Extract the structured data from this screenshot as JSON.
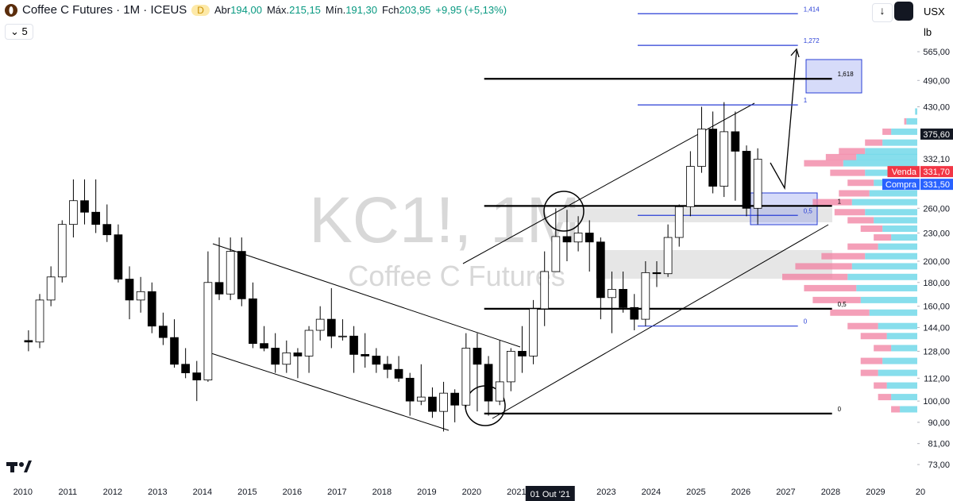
{
  "header": {
    "symbol": "Coffee C Futures · 1M · ICEUS",
    "badge": "D",
    "ohlc": [
      {
        "name": "Abr",
        "value": "194,00"
      },
      {
        "name": "Máx.",
        "value": "215,15"
      },
      {
        "name": "Mín.",
        "value": "191,30"
      },
      {
        "name": "Fch",
        "value": "203,95"
      }
    ],
    "change": "+9,95 (+5,13%)",
    "indicator_count": "5",
    "currency": "USX",
    "unit": "lb"
  },
  "chart_data": {
    "type": "candlestick",
    "watermark": "KC1!, 1M",
    "watermark_subtitle": "Coffee C Futures",
    "log_scale": true,
    "grid": false,
    "up_color": "#ffffff",
    "down_color": "#000000",
    "x": [
      2010.125,
      2010.375,
      2010.625,
      2010.875,
      2011.125,
      2011.375,
      2011.625,
      2011.875,
      2012.125,
      2012.375,
      2012.625,
      2012.875,
      2013.125,
      2013.375,
      2013.625,
      2013.875,
      2014.125,
      2014.375,
      2014.625,
      2014.875,
      2015.125,
      2015.375,
      2015.625,
      2015.875,
      2016.125,
      2016.375,
      2016.625,
      2016.875,
      2017.125,
      2017.375,
      2017.625,
      2017.875,
      2018.125,
      2018.375,
      2018.625,
      2018.875,
      2019.125,
      2019.375,
      2019.625,
      2019.875,
      2020.125,
      2020.375,
      2020.625,
      2020.875,
      2021.125,
      2021.375,
      2021.625,
      2021.875,
      2022.125,
      2022.375,
      2022.625,
      2022.875,
      2023.125,
      2023.375,
      2023.625,
      2023.875,
      2024.125,
      2024.375,
      2024.625,
      2024.875,
      2025.125,
      2025.375,
      2025.625,
      2025.875,
      2026.125,
      2026.375
    ],
    "open": [
      135,
      134,
      165,
      185,
      240,
      270,
      255,
      240,
      228,
      183,
      165,
      172,
      145,
      137,
      120,
      115,
      111,
      180,
      170,
      210,
      166,
      133,
      130,
      120,
      127,
      125,
      142,
      150,
      138,
      138,
      126,
      125,
      120,
      117,
      112,
      100,
      102,
      95,
      104,
      98,
      130,
      120,
      100,
      110,
      128,
      125,
      158,
      190,
      226,
      220,
      230,
      220,
      167,
      174,
      159,
      150,
      189,
      188,
      225,
      262,
      320,
      385,
      290,
      380,
      345,
      260
    ],
    "high": [
      142,
      170,
      195,
      245,
      300,
      300,
      300,
      265,
      240,
      195,
      185,
      180,
      155,
      150,
      130,
      122,
      210,
      225,
      225,
      225,
      180,
      145,
      140,
      135,
      130,
      145,
      160,
      175,
      150,
      145,
      140,
      130,
      125,
      125,
      115,
      120,
      107,
      110,
      106,
      140,
      140,
      125,
      135,
      130,
      145,
      165,
      210,
      260,
      258,
      250,
      245,
      225,
      190,
      190,
      170,
      200,
      200,
      240,
      265,
      345,
      430,
      420,
      440,
      420,
      355,
      350
    ],
    "low": [
      128,
      130,
      160,
      180,
      225,
      240,
      230,
      220,
      180,
      150,
      155,
      140,
      132,
      118,
      112,
      100,
      110,
      165,
      165,
      160,
      130,
      128,
      115,
      115,
      112,
      115,
      135,
      130,
      135,
      115,
      118,
      115,
      112,
      110,
      93,
      98,
      92,
      86,
      90,
      97,
      95,
      93,
      98,
      105,
      115,
      120,
      145,
      190,
      200,
      210,
      190,
      150,
      140,
      155,
      142,
      145,
      176,
      185,
      215,
      250,
      310,
      280,
      275,
      270,
      250,
      240
    ],
    "close": [
      134,
      165,
      185,
      240,
      270,
      255,
      240,
      228,
      183,
      165,
      172,
      145,
      137,
      120,
      115,
      111,
      180,
      170,
      210,
      166,
      133,
      130,
      120,
      127,
      125,
      142,
      150,
      138,
      138,
      126,
      125,
      120,
      117,
      112,
      100,
      102,
      95,
      104,
      98,
      130,
      120,
      100,
      110,
      128,
      125,
      158,
      190,
      226,
      220,
      230,
      220,
      167,
      174,
      159,
      150,
      189,
      188,
      225,
      262,
      320,
      385,
      290,
      380,
      345,
      260,
      331.7
    ],
    "xlim": [
      2009.49,
      2029.93
    ],
    "xticks": [
      2010,
      2011,
      2012,
      2013,
      2014,
      2015,
      2016,
      2017,
      2018,
      2019,
      2020,
      2021,
      2023,
      2024,
      2025,
      2026,
      2027,
      2028,
      2029,
      {
        "value": 2030,
        "label": "20"
      }
    ],
    "crosshair_label": "01 Out '21",
    "crosshair_x": 2021.75,
    "ylim": [
      67.5,
      730
    ],
    "yticks": [
      {
        "value": 565,
        "label": "565,00"
      },
      {
        "value": 490,
        "label": "490,00"
      },
      {
        "value": 430,
        "label": "430,00"
      },
      {
        "value": 260,
        "label": "260,00"
      },
      {
        "value": 230,
        "label": "230,00"
      },
      {
        "value": 200,
        "label": "200,00"
      },
      {
        "value": 180,
        "label": "180,00"
      },
      {
        "value": 160,
        "label": "160,00"
      },
      {
        "value": 144,
        "label": "144,00"
      },
      {
        "value": 128,
        "label": "128,00"
      },
      {
        "value": 112,
        "label": "112,00"
      },
      {
        "value": 100,
        "label": "100,00"
      },
      {
        "value": 90,
        "label": "90,00"
      },
      {
        "value": 81,
        "label": "81,00"
      },
      {
        "value": 73,
        "label": "73,00"
      }
    ],
    "price_labels": [
      {
        "value": 375.6,
        "label": "375,60",
        "color": "#131722"
      },
      {
        "value": 332.1,
        "label": "332,10",
        "color": "#ffffff"
      },
      {
        "name": "Venda",
        "value": 331.7,
        "label": "331,70",
        "color": "#f23645"
      },
      {
        "name": "Compra",
        "value": 331.5,
        "label": "331,50",
        "color": "#2962ff"
      }
    ],
    "fib_levels": [
      {
        "label": "1,414",
        "value": 682,
        "x_start": 2023.7,
        "x_end": 2027.27,
        "color": "#2a3fd6"
      },
      {
        "label": "1,272",
        "value": 583,
        "x_start": 2023.7,
        "x_end": 2027.27,
        "color": "#2a3fd6"
      },
      {
        "label": "1",
        "value": 434,
        "x_start": 2023.7,
        "x_end": 2027.27,
        "color": "#2a3fd6"
      },
      {
        "label": "0,5",
        "value": 251,
        "x_start": 2023.7,
        "x_end": 2027.27,
        "color": "#2a3fd6"
      },
      {
        "label": "0",
        "value": 145,
        "x_start": 2023.7,
        "x_end": 2027.27,
        "color": "#2a3fd6"
      },
      {
        "label": "1,618",
        "value": 494,
        "x_start": 2020.28,
        "x_end": 2028.03,
        "color": "#000000"
      },
      {
        "label": "1",
        "value": 263,
        "x_start": 2020.28,
        "x_end": 2028.03,
        "color": "#000000"
      },
      {
        "label": "0,5",
        "value": 158,
        "x_start": 2020.28,
        "x_end": 2028.03,
        "color": "#000000"
      },
      {
        "label": "0",
        "value": 94,
        "x_start": 2020.28,
        "x_end": 2028.03,
        "color": "#000000"
      }
    ],
    "volume_profile": {
      "buy_color": "#5fd3e6",
      "sell_color": "#f07fa0",
      "rows": [
        {
          "price": 420,
          "buy": 5,
          "sell": 0
        },
        {
          "price": 400,
          "buy": 25,
          "sell": 5
        },
        {
          "price": 380,
          "buy": 60,
          "sell": 20
        },
        {
          "price": 360,
          "buy": 80,
          "sell": 40
        },
        {
          "price": 345,
          "buy": 120,
          "sell": 60
        },
        {
          "price": 335,
          "buy": 140,
          "sell": 70
        },
        {
          "price": 325,
          "buy": 170,
          "sell": 90
        },
        {
          "price": 310,
          "buy": 120,
          "sell": 80
        },
        {
          "price": 295,
          "buy": 100,
          "sell": 60
        },
        {
          "price": 280,
          "buy": 110,
          "sell": 70
        },
        {
          "price": 268,
          "buy": 150,
          "sell": 90
        },
        {
          "price": 255,
          "buy": 120,
          "sell": 70
        },
        {
          "price": 245,
          "buy": 100,
          "sell": 60
        },
        {
          "price": 235,
          "buy": 80,
          "sell": 50
        },
        {
          "price": 225,
          "buy": 60,
          "sell": 40
        },
        {
          "price": 215,
          "buy": 90,
          "sell": 70
        },
        {
          "price": 205,
          "buy": 120,
          "sell": 100
        },
        {
          "price": 195,
          "buy": 150,
          "sell": 130
        },
        {
          "price": 185,
          "buy": 160,
          "sell": 150
        },
        {
          "price": 175,
          "buy": 140,
          "sell": 120
        },
        {
          "price": 165,
          "buy": 130,
          "sell": 110
        },
        {
          "price": 155,
          "buy": 110,
          "sell": 90
        },
        {
          "price": 145,
          "buy": 90,
          "sell": 70
        },
        {
          "price": 138,
          "buy": 70,
          "sell": 60
        },
        {
          "price": 130,
          "buy": 60,
          "sell": 40
        },
        {
          "price": 122,
          "buy": 80,
          "sell": 50
        },
        {
          "price": 115,
          "buy": 90,
          "sell": 40
        },
        {
          "price": 108,
          "buy": 70,
          "sell": 30
        },
        {
          "price": 102,
          "buy": 60,
          "sell": 30
        },
        {
          "price": 96,
          "buy": 40,
          "sell": 20
        }
      ]
    }
  }
}
